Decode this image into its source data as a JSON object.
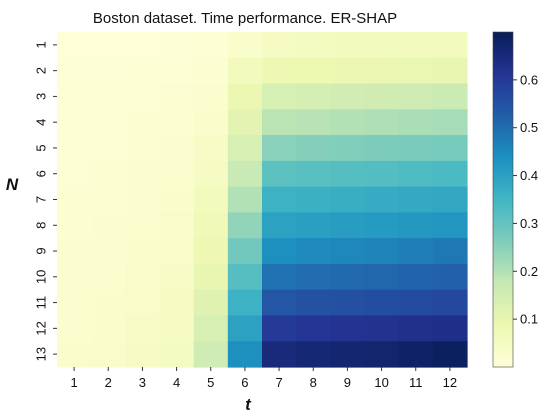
{
  "chart_data": {
    "type": "heatmap",
    "title": "Boston dataset. Time performance. ER-SHAP",
    "xlabel": "t",
    "ylabel": "N",
    "x": [
      "1",
      "2",
      "3",
      "4",
      "5",
      "6",
      "7",
      "8",
      "9",
      "10",
      "11",
      "12"
    ],
    "y": [
      "1",
      "2",
      "3",
      "4",
      "5",
      "6",
      "7",
      "8",
      "9",
      "10",
      "11",
      "12",
      "13"
    ],
    "values": [
      [
        0.005,
        0.005,
        0.006,
        0.008,
        0.012,
        0.03,
        0.05,
        0.055,
        0.058,
        0.06,
        0.06,
        0.06
      ],
      [
        0.008,
        0.008,
        0.01,
        0.012,
        0.018,
        0.06,
        0.085,
        0.088,
        0.09,
        0.092,
        0.095,
        0.098
      ],
      [
        0.01,
        0.01,
        0.012,
        0.015,
        0.025,
        0.09,
        0.14,
        0.145,
        0.15,
        0.155,
        0.16,
        0.165
      ],
      [
        0.01,
        0.012,
        0.015,
        0.018,
        0.03,
        0.11,
        0.19,
        0.195,
        0.2,
        0.205,
        0.21,
        0.215
      ],
      [
        0.012,
        0.014,
        0.018,
        0.022,
        0.04,
        0.14,
        0.25,
        0.255,
        0.26,
        0.265,
        0.27,
        0.275
      ],
      [
        0.014,
        0.016,
        0.02,
        0.025,
        0.05,
        0.17,
        0.31,
        0.315,
        0.32,
        0.325,
        0.33,
        0.335
      ],
      [
        0.016,
        0.018,
        0.022,
        0.028,
        0.06,
        0.2,
        0.36,
        0.365,
        0.37,
        0.375,
        0.38,
        0.385
      ],
      [
        0.018,
        0.02,
        0.025,
        0.032,
        0.07,
        0.24,
        0.4,
        0.405,
        0.41,
        0.415,
        0.42,
        0.425
      ],
      [
        0.02,
        0.022,
        0.028,
        0.036,
        0.085,
        0.28,
        0.44,
        0.45,
        0.455,
        0.46,
        0.47,
        0.48
      ],
      [
        0.022,
        0.025,
        0.032,
        0.04,
        0.1,
        0.32,
        0.49,
        0.5,
        0.505,
        0.51,
        0.515,
        0.52
      ],
      [
        0.024,
        0.028,
        0.036,
        0.045,
        0.12,
        0.36,
        0.54,
        0.55,
        0.555,
        0.56,
        0.565,
        0.57
      ],
      [
        0.026,
        0.03,
        0.04,
        0.05,
        0.14,
        0.4,
        0.6,
        0.61,
        0.615,
        0.62,
        0.625,
        0.63
      ],
      [
        0.028,
        0.032,
        0.044,
        0.055,
        0.16,
        0.44,
        0.65,
        0.66,
        0.665,
        0.67,
        0.68,
        0.69
      ]
    ],
    "colorbar": {
      "min": 0.0,
      "max": 0.7,
      "ticks": [
        0.1,
        0.2,
        0.3,
        0.4,
        0.5,
        0.6
      ],
      "tick_labels": [
        "0.1",
        "0.2",
        "0.3",
        "0.4",
        "0.5",
        "0.6"
      ],
      "colormap": "YlGnBu"
    },
    "legend": "none",
    "grid": false
  }
}
